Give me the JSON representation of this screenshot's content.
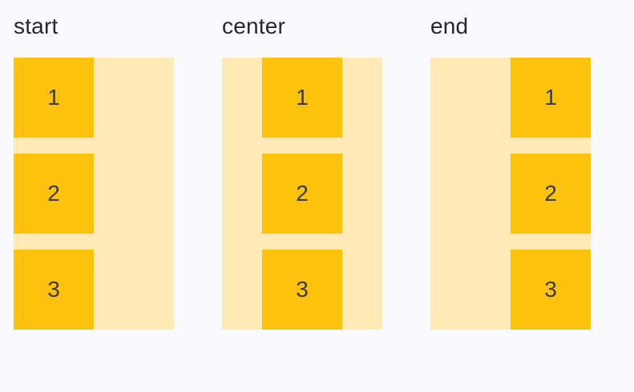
{
  "page": {
    "background": "#fafafc"
  },
  "colors": {
    "item_fill": "#fdc20d",
    "container_fill": "#ffeab5",
    "label_text": "#27272b",
    "item_text": "#3c3c40"
  },
  "columns": [
    {
      "label": "start",
      "alignment": "start",
      "items": [
        "1",
        "2",
        "3"
      ]
    },
    {
      "label": "center",
      "alignment": "center",
      "items": [
        "1",
        "2",
        "3"
      ]
    },
    {
      "label": "end",
      "alignment": "end",
      "items": [
        "1",
        "2",
        "3"
      ]
    }
  ]
}
